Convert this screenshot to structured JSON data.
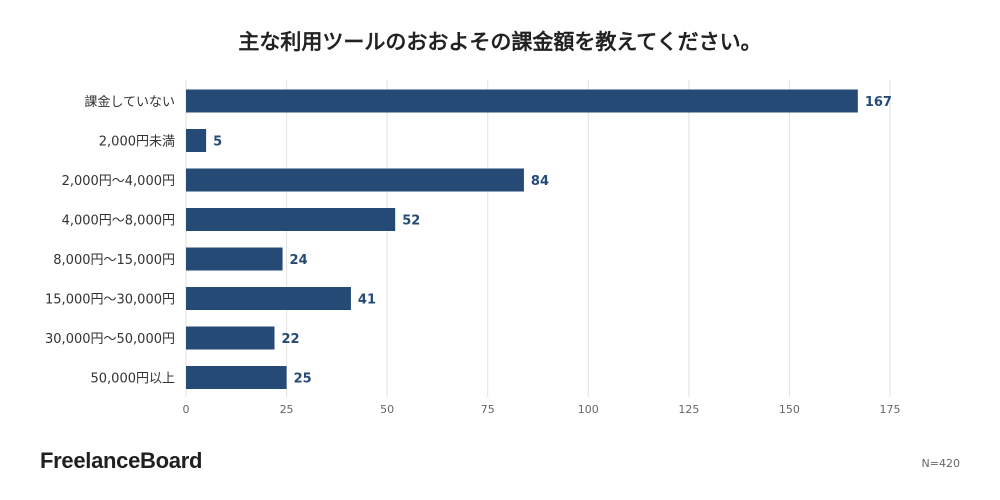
{
  "title": "主な利用ツールのおおよその課金額を教えてください。",
  "brand": "FreelanceBoard",
  "sample_note": "N=420",
  "colors": {
    "bar": "#244a75",
    "value_label": "#244a75",
    "grid": "#e2e2e2",
    "text": "#333333",
    "tick": "#666666"
  },
  "chart_data": {
    "type": "bar",
    "orientation": "horizontal",
    "title": "主な利用ツールのおおよその課金額を教えてください。",
    "xlabel": "",
    "ylabel": "",
    "categories": [
      "課金していない",
      "2,000円未満",
      "2,000円〜4,000円",
      "4,000円〜8,000円",
      "8,000円〜15,000円",
      "15,000円〜30,000円",
      "30,000円〜50,000円",
      "50,000円以上"
    ],
    "values": [
      167,
      5,
      84,
      52,
      24,
      41,
      22,
      25
    ],
    "xlim": [
      0,
      175
    ],
    "xticks": [
      0,
      25,
      50,
      75,
      100,
      125,
      150,
      175
    ],
    "grid": "vertical",
    "legend": "none",
    "data_labels": true
  }
}
